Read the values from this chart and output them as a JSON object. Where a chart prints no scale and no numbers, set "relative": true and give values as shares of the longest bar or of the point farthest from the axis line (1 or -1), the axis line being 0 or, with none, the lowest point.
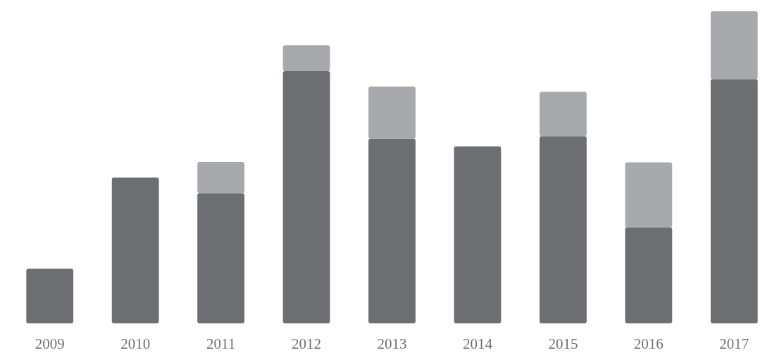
{
  "chart_data": {
    "type": "bar",
    "stacked": true,
    "relative": true,
    "categories": [
      "2009",
      "2010",
      "2011",
      "2012",
      "2013",
      "2014",
      "2015",
      "2016",
      "2017"
    ],
    "series": [
      {
        "color": "#6d6e71",
        "values": [
          0.175,
          0.467,
          0.417,
          0.808,
          0.592,
          0.567,
          0.6,
          0.308,
          0.783
        ]
      },
      {
        "color": "#a7a9ac",
        "values": [
          0,
          0,
          0.1,
          0.083,
          0.167,
          0,
          0.142,
          0.208,
          0.217
        ]
      }
    ]
  }
}
